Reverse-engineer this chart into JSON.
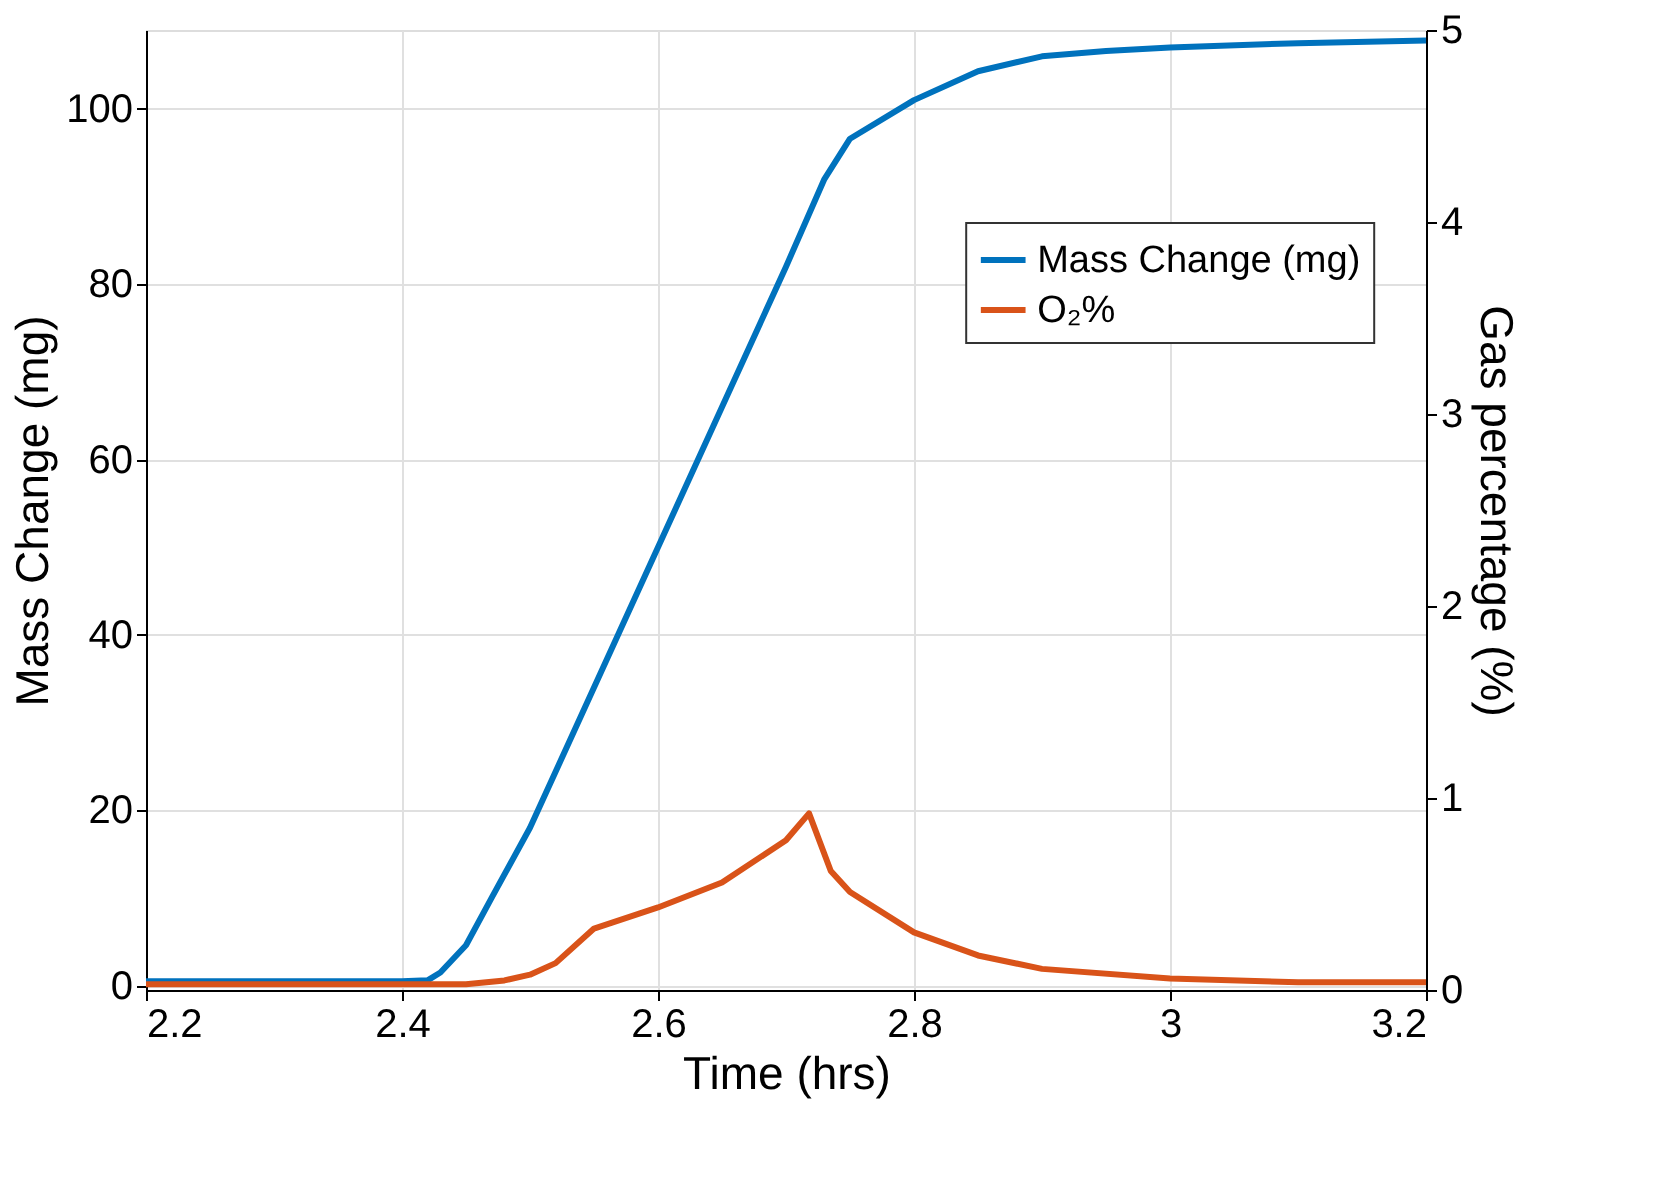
{
  "chart_data": {
    "type": "line",
    "xlabel": "Time (hrs)",
    "ylabel": "Mass Change (mg)",
    "y2label": "Gas percentage (%)",
    "xlim": [
      2.2,
      3.2
    ],
    "xticks": [
      2.2,
      2.4,
      2.6,
      2.8,
      3,
      3.2
    ],
    "ylim": [
      -0.5,
      109
    ],
    "yticks": [
      0,
      20,
      40,
      60,
      80,
      100
    ],
    "y2lim": [
      0,
      5
    ],
    "y2ticks": [
      0,
      1,
      2,
      3,
      4,
      5
    ],
    "grid": true,
    "legend": "top right",
    "marker": "none",
    "line_style": "solid",
    "series": [
      {
        "name": "Mass Change (mg)",
        "color": "#0072bd",
        "x": [
          2.2,
          2.3,
          2.4,
          2.42,
          2.43,
          2.45,
          2.47,
          2.5,
          2.55,
          2.6,
          2.65,
          2.7,
          2.73,
          2.75,
          2.8,
          2.85,
          2.9,
          2.95,
          3.0,
          3.1,
          3.2
        ],
        "values": [
          0.5,
          0.5,
          0.5,
          0.6,
          1.5,
          4.6,
          10,
          18,
          34,
          50,
          66,
          82,
          92,
          96.6,
          101,
          104.3,
          106,
          106.6,
          107,
          107.5,
          107.8
        ]
      },
      {
        "name": "O₂%",
        "color": "#d95319",
        "axis": "y2",
        "x": [
          2.2,
          2.3,
          2.4,
          2.45,
          2.48,
          2.5,
          2.52,
          2.55,
          2.6,
          2.65,
          2.7,
          2.718,
          2.735,
          2.75,
          2.8,
          2.85,
          2.9,
          3.0,
          3.1,
          3.2
        ],
        "values": [
          0.03,
          0.03,
          0.03,
          0.03,
          0.05,
          0.08,
          0.14,
          0.32,
          0.43,
          0.56,
          0.78,
          0.92,
          0.62,
          0.51,
          0.3,
          0.18,
          0.11,
          0.06,
          0.04,
          0.04
        ]
      }
    ]
  }
}
